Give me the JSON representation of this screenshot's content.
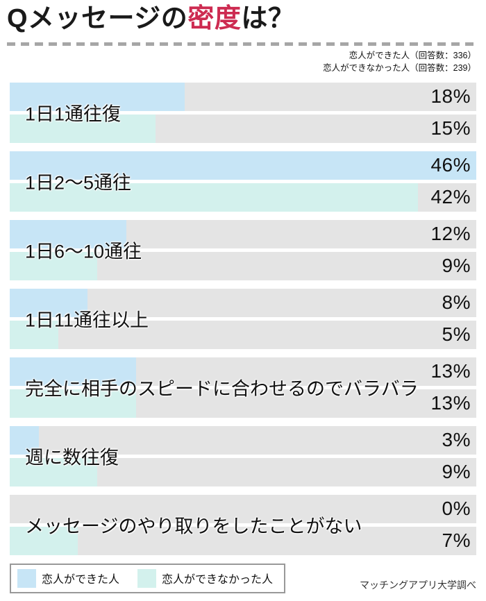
{
  "title": {
    "part1": "Qメッセージの",
    "part2": "密度",
    "part3": "は？",
    "accent_color": "#cd2b51"
  },
  "annotation": {
    "line1": "恋人ができた人（回答数：336）",
    "line2": "恋人ができなかった人（回答数：239）"
  },
  "chart_data": {
    "type": "bar",
    "orientation": "horizontal",
    "title": "Qメッセージの密度は？",
    "categories": [
      "1日1通往復",
      "1日2〜5通往",
      "1日6〜10通往",
      "1日11通往以上",
      "完全に相手のスピードに合わせるのでバラバラ",
      "週に数往復",
      "メッセージのやり取りをしたことがない"
    ],
    "series": [
      {
        "name": "恋人ができた人",
        "respondents": 336,
        "color": "#c7e5f6",
        "values": [
          18,
          46,
          12,
          8,
          13,
          3,
          0
        ]
      },
      {
        "name": "恋人ができなかった人",
        "respondents": 239,
        "color": "#d3f1ed",
        "values": [
          15,
          42,
          9,
          5,
          13,
          9,
          7
        ]
      }
    ],
    "value_suffix": "%",
    "track_color": "#e4e4e4",
    "layout": {
      "bar_scale_max_pct": 48,
      "max_value_full_width": true,
      "value_labels": "inside-right",
      "category_labels": "overlay-left",
      "grid": false
    }
  },
  "legend": {
    "items": [
      {
        "label": "恋人ができた人",
        "color": "#c7e5f6"
      },
      {
        "label": "恋人ができなかった人",
        "color": "#d3f1ed"
      }
    ]
  },
  "footer": {
    "source": "マッチングアプリ大学調べ"
  }
}
